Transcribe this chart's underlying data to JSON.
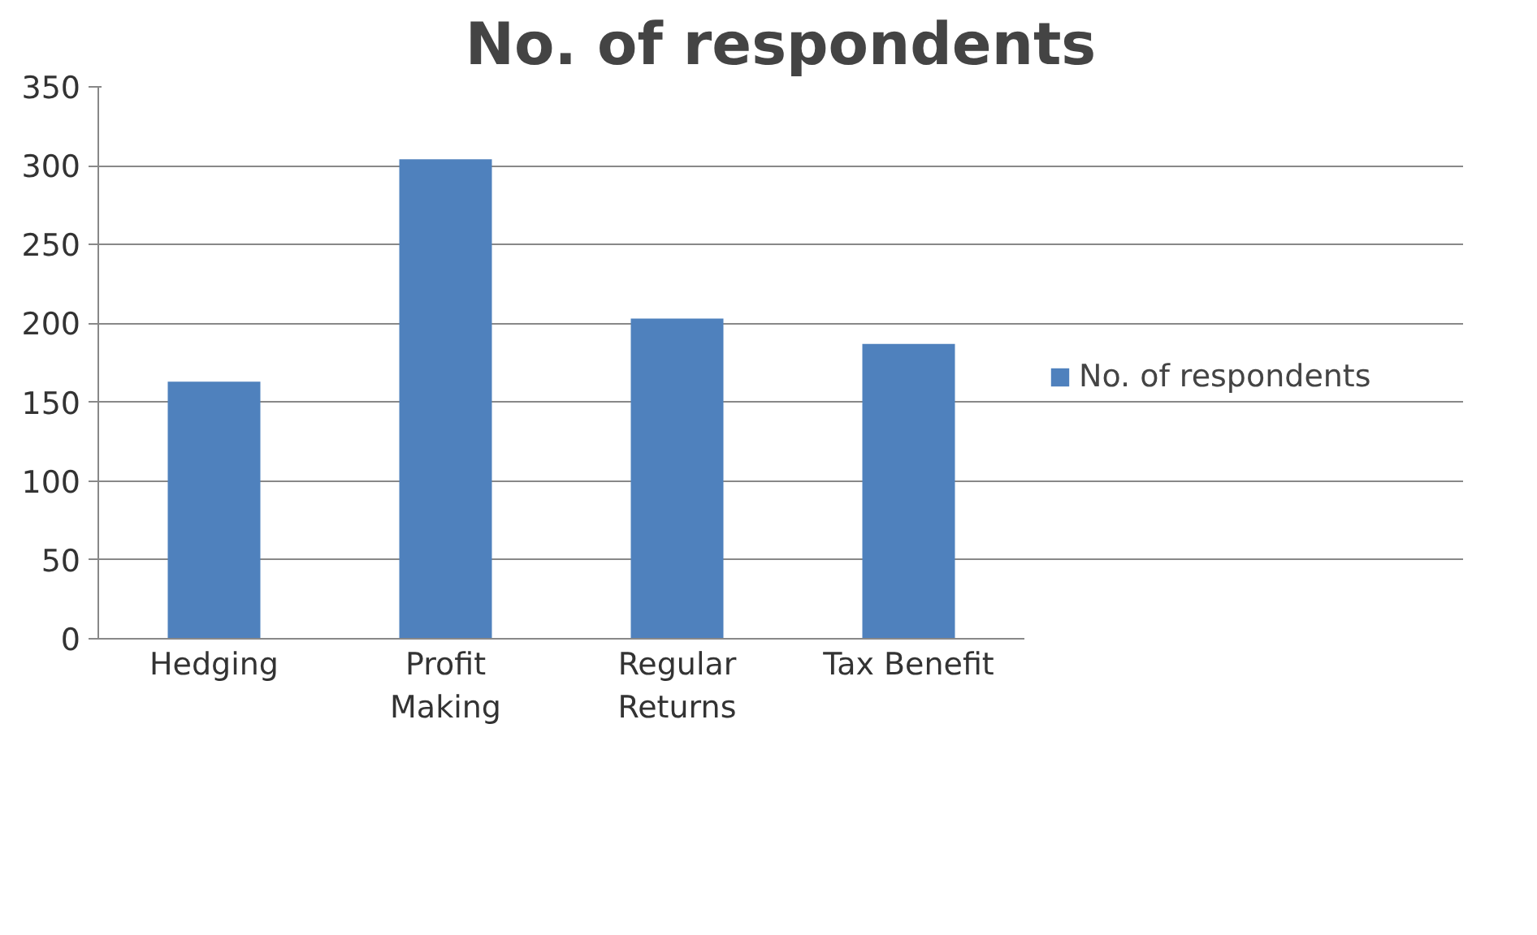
{
  "chart_data": {
    "type": "bar",
    "title": "No. of respondents",
    "categories": [
      "Hedging",
      "Profit Making",
      "Regular Returns",
      "Tax Benefit"
    ],
    "series": [
      {
        "name": "No. of respondents",
        "color": "#4f81bd",
        "values": [
          163,
          304,
          203,
          187
        ]
      }
    ],
    "ylim": [
      0,
      350
    ],
    "yticks": [
      0,
      50,
      100,
      150,
      200,
      250,
      300,
      350
    ],
    "grid": "y",
    "legend": "right"
  }
}
